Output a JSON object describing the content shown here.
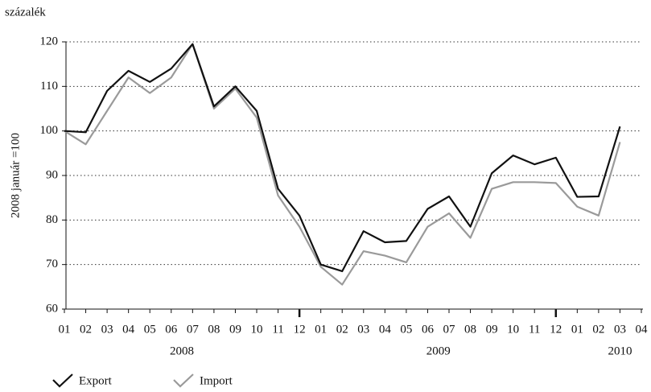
{
  "chart_data": {
    "type": "line",
    "unit_label": "százalék",
    "y_label": "2008 január =100",
    "categories": [
      "01",
      "02",
      "03",
      "04",
      "05",
      "06",
      "07",
      "08",
      "09",
      "10",
      "11",
      "12",
      "01",
      "02",
      "03",
      "04",
      "05",
      "06",
      "07",
      "08",
      "09",
      "10",
      "11",
      "12",
      "01",
      "02",
      "03",
      "04"
    ],
    "year_labels": [
      "2008",
      "2009",
      "2010"
    ],
    "series": [
      {
        "name": "Export",
        "color": "#111111",
        "values": [
          100,
          99.7,
          109,
          113.5,
          111,
          114,
          119.5,
          105.5,
          110,
          104.5,
          87,
          81,
          70,
          68.5,
          77.5,
          75,
          75.3,
          82.5,
          85.3,
          78.5,
          90.5,
          94.5,
          92.5,
          94,
          85.2,
          85.3,
          101,
          null
        ]
      },
      {
        "name": "Import",
        "color": "#9a9a9a",
        "values": [
          100,
          97,
          104.5,
          112,
          108.5,
          112,
          119.5,
          105,
          109.5,
          103,
          85.5,
          78.5,
          69.5,
          65.5,
          73,
          72,
          70.5,
          78.5,
          81.5,
          76,
          87,
          88.5,
          88.5,
          88.3,
          83,
          81,
          97.5,
          null
        ]
      }
    ],
    "ylim": [
      60,
      120
    ],
    "yticks": [
      60,
      70,
      80,
      90,
      100,
      110,
      120
    ],
    "grid": true
  }
}
